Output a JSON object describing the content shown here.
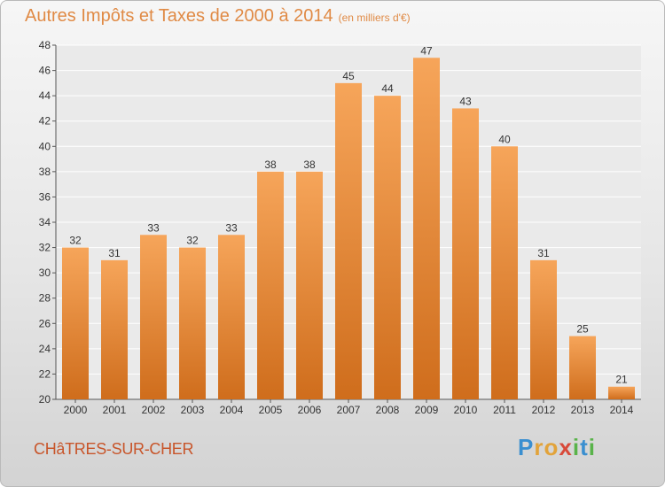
{
  "title": "Autres Impôts et Taxes de 2000 à 2014",
  "subtitle": "(en milliers d'€)",
  "commune": "CHâTRES-SUR-CHER",
  "logo": {
    "letters": [
      "P",
      "r",
      "o",
      "x",
      "i",
      "t",
      "i"
    ],
    "colors": [
      "#3a8fd0",
      "#e2a33a",
      "#e2a33a",
      "#d84a3a",
      "#59b34a",
      "#3a8fd0",
      "#59b34a"
    ]
  },
  "colors": {
    "bar_light": "#f6a55a",
    "bar_dark": "#cf6d1c",
    "title": "#e08a45",
    "commune": "#c8552a"
  },
  "chart_data": {
    "type": "bar",
    "categories": [
      "2000",
      "2001",
      "2002",
      "2003",
      "2004",
      "2005",
      "2006",
      "2007",
      "2008",
      "2009",
      "2010",
      "2011",
      "2012",
      "2013",
      "2014"
    ],
    "values": [
      32,
      31,
      33,
      32,
      33,
      38,
      38,
      45,
      44,
      47,
      43,
      40,
      31,
      25,
      21
    ],
    "title": "Autres Impôts et Taxes de 2000 à 2014",
    "xlabel": "",
    "ylabel": "",
    "ylim": [
      20,
      48
    ],
    "yticks": [
      20,
      22,
      24,
      26,
      28,
      30,
      32,
      34,
      36,
      38,
      40,
      42,
      44,
      46,
      48
    ],
    "grid": true,
    "data_labels": true
  }
}
